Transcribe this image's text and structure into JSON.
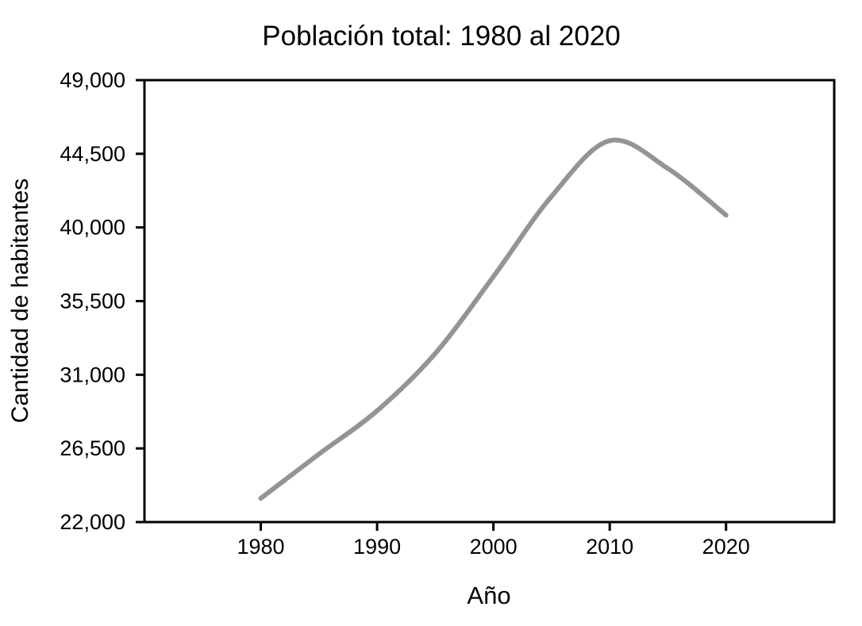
{
  "chart_data": {
    "type": "line",
    "title": "Población total: 1980 al 2020",
    "xlabel": "Año",
    "ylabel": "Cantidad de habitantes",
    "series": [
      {
        "name": "Población total",
        "x": [
          1980,
          1985,
          1990,
          1995,
          2000,
          2005,
          2010,
          2015,
          2020
        ],
        "values": [
          23450,
          26150,
          28800,
          32300,
          37000,
          41900,
          45300,
          43600,
          40750
        ]
      }
    ],
    "peak": {
      "year": 2011,
      "value": 45400
    },
    "xlim": [
      1970,
      2029.3
    ],
    "ylim": [
      22000,
      49000
    ],
    "xticks": {
      "values": [
        1980,
        1990,
        2000,
        2010,
        2020
      ],
      "labels": [
        "1980",
        "1990",
        "2000",
        "2010",
        "2020"
      ]
    },
    "yticks": {
      "values": [
        22000,
        26500,
        31000,
        35500,
        40000,
        44500,
        49000
      ],
      "labels": [
        "22,000",
        "26,500",
        "31,000",
        "35,500",
        "40,000",
        "44,500",
        "49,000"
      ]
    },
    "grid": false,
    "legend_position": "none",
    "smooth": true,
    "colors": {
      "line": "#949494",
      "axis": "#000000",
      "text": "#000000",
      "background": "#ffffff"
    }
  }
}
